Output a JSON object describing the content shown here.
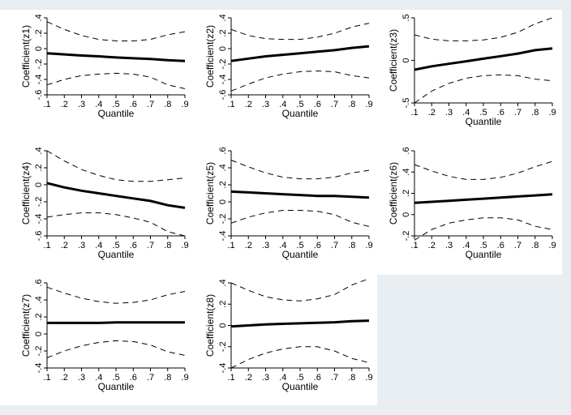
{
  "figure": {
    "background": "#e8eef2",
    "panel_background": "#ffffff"
  },
  "chart_data": [
    {
      "type": "line",
      "ylabel": "Coefficient(z1)",
      "xlabel": "Quantile",
      "xlim": [
        0.1,
        0.9
      ],
      "ylim": [
        -0.6,
        0.4
      ],
      "x_ticks": [
        ".1",
        ".2",
        ".3",
        ".4",
        ".5",
        ".6",
        ".7",
        ".8",
        ".9"
      ],
      "y_ticks": [
        ".4",
        ".2",
        "0",
        "-.2",
        "-.4",
        "-.6"
      ],
      "x": [
        0.1,
        0.2,
        0.3,
        0.4,
        0.5,
        0.6,
        0.7,
        0.8,
        0.9
      ],
      "series": [
        {
          "style": "solid",
          "values": [
            -0.06,
            -0.075,
            -0.09,
            -0.1,
            -0.115,
            -0.125,
            -0.135,
            -0.15,
            -0.16
          ]
        },
        {
          "style": "dashed",
          "values": [
            0.35,
            0.25,
            0.17,
            0.12,
            0.1,
            0.1,
            0.12,
            0.18,
            0.22
          ]
        },
        {
          "style": "dashed",
          "values": [
            -0.47,
            -0.4,
            -0.35,
            -0.33,
            -0.32,
            -0.33,
            -0.37,
            -0.47,
            -0.52
          ]
        }
      ]
    },
    {
      "type": "line",
      "ylabel": "Coefficient(z2)",
      "xlabel": "Quantile",
      "xlim": [
        0.1,
        0.9
      ],
      "ylim": [
        -0.6,
        0.4
      ],
      "x_ticks": [
        ".1",
        ".2",
        ".3",
        ".4",
        ".5",
        ".6",
        ".7",
        ".8",
        ".9"
      ],
      "y_ticks": [
        ".4",
        ".2",
        "0",
        "-.2",
        "-.4",
        "-.6"
      ],
      "x": [
        0.1,
        0.2,
        0.3,
        0.4,
        0.5,
        0.6,
        0.7,
        0.8,
        0.9
      ],
      "series": [
        {
          "style": "solid",
          "values": [
            -0.16,
            -0.13,
            -0.1,
            -0.08,
            -0.06,
            -0.04,
            -0.02,
            0.01,
            0.03
          ]
        },
        {
          "style": "dashed",
          "values": [
            0.25,
            0.17,
            0.13,
            0.12,
            0.12,
            0.15,
            0.2,
            0.28,
            0.33
          ]
        },
        {
          "style": "dashed",
          "values": [
            -0.55,
            -0.46,
            -0.38,
            -0.33,
            -0.3,
            -0.29,
            -0.3,
            -0.35,
            -0.38
          ]
        }
      ]
    },
    {
      "type": "line",
      "ylabel": "Coefficient(z3)",
      "xlabel": "Quantile",
      "xlim": [
        0.1,
        0.9
      ],
      "ylim": [
        -0.5,
        0.5
      ],
      "x_ticks": [
        ".1",
        ".2",
        ".3",
        ".4",
        ".5",
        ".6",
        ".7",
        ".8",
        ".9"
      ],
      "y_ticks": [
        ".5",
        "0",
        "-.5"
      ],
      "x": [
        0.1,
        0.2,
        0.3,
        0.4,
        0.5,
        0.6,
        0.7,
        0.8,
        0.9
      ],
      "series": [
        {
          "style": "solid",
          "values": [
            -0.11,
            -0.07,
            -0.04,
            -0.01,
            0.02,
            0.05,
            0.08,
            0.12,
            0.14
          ]
        },
        {
          "style": "dashed",
          "values": [
            0.3,
            0.25,
            0.23,
            0.23,
            0.24,
            0.27,
            0.33,
            0.43,
            0.5
          ]
        },
        {
          "style": "dashed",
          "values": [
            -0.5,
            -0.36,
            -0.27,
            -0.21,
            -0.18,
            -0.17,
            -0.18,
            -0.22,
            -0.24
          ]
        }
      ]
    },
    {
      "type": "line",
      "ylabel": "Coefficient(z4)",
      "xlabel": "Quantile",
      "xlim": [
        0.1,
        0.9
      ],
      "ylim": [
        -0.6,
        0.4
      ],
      "x_ticks": [
        ".1",
        ".2",
        ".3",
        ".4",
        ".5",
        ".6",
        ".7",
        ".8",
        ".9"
      ],
      "y_ticks": [
        ".4",
        ".2",
        "0",
        "-.2",
        "-.4",
        "-.6"
      ],
      "x": [
        0.1,
        0.2,
        0.3,
        0.4,
        0.5,
        0.6,
        0.7,
        0.8,
        0.9
      ],
      "series": [
        {
          "style": "solid",
          "values": [
            0.02,
            -0.03,
            -0.07,
            -0.1,
            -0.13,
            -0.16,
            -0.19,
            -0.24,
            -0.27
          ]
        },
        {
          "style": "dashed",
          "values": [
            0.4,
            0.28,
            0.18,
            0.11,
            0.06,
            0.04,
            0.04,
            0.06,
            0.08
          ]
        },
        {
          "style": "dashed",
          "values": [
            -0.38,
            -0.35,
            -0.33,
            -0.33,
            -0.35,
            -0.39,
            -0.44,
            -0.55,
            -0.6
          ]
        }
      ]
    },
    {
      "type": "line",
      "ylabel": "Coefficient(z5)",
      "xlabel": "Quantile",
      "xlim": [
        0.1,
        0.9
      ],
      "ylim": [
        -0.4,
        0.6
      ],
      "x_ticks": [
        ".1",
        ".2",
        ".3",
        ".4",
        ".5",
        ".6",
        ".7",
        ".8",
        ".9"
      ],
      "y_ticks": [
        ".6",
        ".4",
        ".2",
        "0",
        "-.2",
        "-.4"
      ],
      "x": [
        0.1,
        0.2,
        0.3,
        0.4,
        0.5,
        0.6,
        0.7,
        0.8,
        0.9
      ],
      "series": [
        {
          "style": "solid",
          "values": [
            0.12,
            0.11,
            0.1,
            0.09,
            0.08,
            0.07,
            0.07,
            0.06,
            0.05
          ]
        },
        {
          "style": "dashed",
          "values": [
            0.49,
            0.41,
            0.34,
            0.29,
            0.27,
            0.27,
            0.29,
            0.34,
            0.37
          ]
        },
        {
          "style": "dashed",
          "values": [
            -0.25,
            -0.18,
            -0.13,
            -0.1,
            -0.1,
            -0.11,
            -0.15,
            -0.24,
            -0.29
          ]
        }
      ]
    },
    {
      "type": "line",
      "ylabel": "Coefficient(z6)",
      "xlabel": "Quantile",
      "xlim": [
        0.1,
        0.9
      ],
      "ylim": [
        -0.2,
        0.6
      ],
      "x_ticks": [
        ".1",
        ".2",
        ".3",
        ".4",
        ".5",
        ".6",
        ".7",
        ".8",
        ".9"
      ],
      "y_ticks": [
        ".6",
        ".4",
        ".2",
        "0",
        "-.2"
      ],
      "x": [
        0.1,
        0.2,
        0.3,
        0.4,
        0.5,
        0.6,
        0.7,
        0.8,
        0.9
      ],
      "series": [
        {
          "style": "solid",
          "values": [
            0.11,
            0.12,
            0.13,
            0.14,
            0.15,
            0.16,
            0.17,
            0.18,
            0.19
          ]
        },
        {
          "style": "dashed",
          "values": [
            0.47,
            0.41,
            0.36,
            0.33,
            0.33,
            0.35,
            0.39,
            0.45,
            0.5
          ]
        },
        {
          "style": "dashed",
          "values": [
            -0.24,
            -0.14,
            -0.08,
            -0.05,
            -0.03,
            -0.03,
            -0.05,
            -0.11,
            -0.14
          ]
        }
      ]
    },
    {
      "type": "line",
      "ylabel": "Coefficient(z7)",
      "xlabel": "Quantile",
      "xlim": [
        0.1,
        0.9
      ],
      "ylim": [
        -0.4,
        0.6
      ],
      "x_ticks": [
        ".1",
        ".2",
        ".3",
        ".4",
        ".5",
        ".6",
        ".7",
        ".8",
        ".9"
      ],
      "y_ticks": [
        ".6",
        ".4",
        ".2",
        "0",
        "-.2",
        "-.4"
      ],
      "x": [
        0.1,
        0.2,
        0.3,
        0.4,
        0.5,
        0.6,
        0.7,
        0.8,
        0.9
      ],
      "series": [
        {
          "style": "solid",
          "values": [
            0.13,
            0.13,
            0.13,
            0.13,
            0.135,
            0.135,
            0.135,
            0.135,
            0.135
          ]
        },
        {
          "style": "dashed",
          "values": [
            0.55,
            0.48,
            0.42,
            0.38,
            0.36,
            0.37,
            0.4,
            0.46,
            0.5
          ]
        },
        {
          "style": "dashed",
          "values": [
            -0.28,
            -0.2,
            -0.14,
            -0.1,
            -0.08,
            -0.09,
            -0.13,
            -0.21,
            -0.25
          ]
        }
      ]
    },
    {
      "type": "line",
      "ylabel": "Coefficient(z8)",
      "xlabel": "Quantile",
      "xlim": [
        0.1,
        0.9
      ],
      "ylim": [
        -0.4,
        0.4
      ],
      "x_ticks": [
        ".1",
        ".2",
        ".3",
        ".4",
        ".5",
        ".6",
        ".7",
        ".8",
        ".9"
      ],
      "y_ticks": [
        ".4",
        ".2",
        "0",
        "-.2",
        "-.4"
      ],
      "x": [
        0.1,
        0.2,
        0.3,
        0.4,
        0.5,
        0.6,
        0.7,
        0.8,
        0.9
      ],
      "series": [
        {
          "style": "solid",
          "values": [
            -0.01,
            0.0,
            0.01,
            0.015,
            0.02,
            0.025,
            0.03,
            0.04,
            0.045
          ]
        },
        {
          "style": "dashed",
          "values": [
            0.4,
            0.33,
            0.27,
            0.24,
            0.23,
            0.25,
            0.29,
            0.38,
            0.44
          ]
        },
        {
          "style": "dashed",
          "values": [
            -0.4,
            -0.32,
            -0.26,
            -0.22,
            -0.2,
            -0.2,
            -0.24,
            -0.31,
            -0.35
          ]
        }
      ]
    }
  ]
}
